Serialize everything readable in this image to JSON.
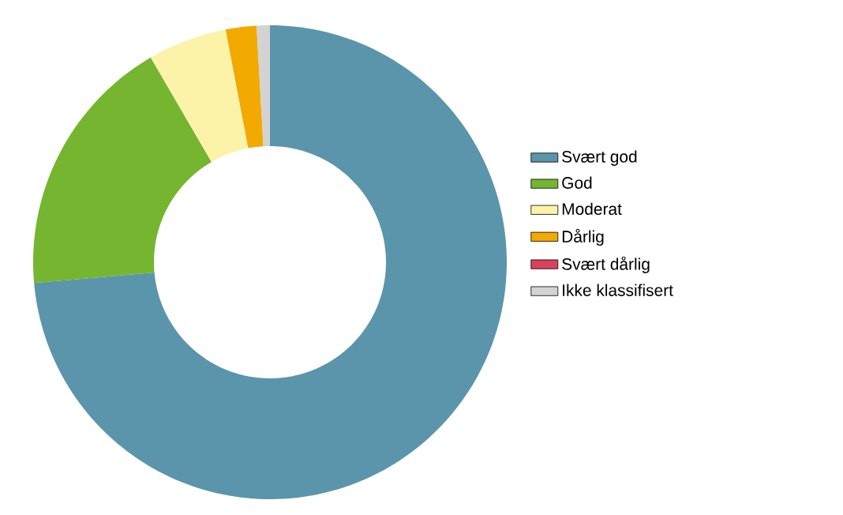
{
  "chart_data": {
    "type": "donut",
    "categories": [
      "Svært god",
      "God",
      "Moderat",
      "Dårlig",
      "Svært dårlig",
      "Ikke klassifisert"
    ],
    "values": [
      73.6,
      18,
      5.4,
      2.1,
      0,
      0.9
    ],
    "colors": [
      "#5b95ab",
      "#76b52f",
      "#fdf3a8",
      "#f2a900",
      "#d9415d",
      "#d3d3d3"
    ],
    "legend": "right"
  }
}
